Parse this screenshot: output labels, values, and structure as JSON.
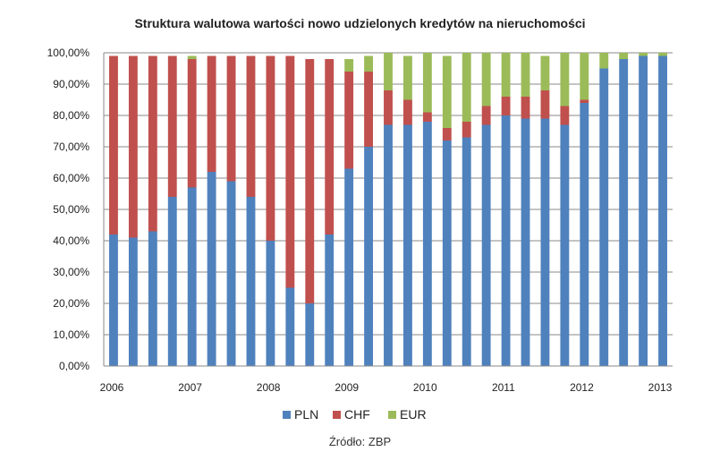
{
  "chart_data": {
    "type": "bar",
    "stacked": true,
    "title": "Struktura walutowa wartości nowo udzielonych kredytów na nieruchomości",
    "source": "Źródło: ZBP",
    "xlabel": "",
    "ylabel": "",
    "ylim": [
      0,
      100
    ],
    "y_ticks": [
      "0,00%",
      "10,00%",
      "20,00%",
      "30,00%",
      "40,00%",
      "50,00%",
      "60,00%",
      "70,00%",
      "80,00%",
      "90,00%",
      "100,00%"
    ],
    "x_tick_labels": [
      "2006",
      "2007",
      "2008",
      "2009",
      "2010",
      "2011",
      "2012",
      "2013"
    ],
    "grid": true,
    "legend_position": "bottom",
    "colors": {
      "PLN": "#4f81bd",
      "CHF": "#c0504d",
      "EUR": "#9bbb59"
    },
    "series": [
      {
        "name": "PLN",
        "values": [
          42,
          41,
          43,
          54,
          57,
          62,
          59,
          54,
          40,
          25,
          20,
          42,
          63,
          70,
          77,
          77,
          78,
          72,
          73,
          77,
          80,
          79,
          79,
          77,
          84,
          95,
          98,
          99,
          99
        ]
      },
      {
        "name": "CHF",
        "values": [
          57,
          58,
          56,
          45,
          41,
          37,
          40,
          45,
          59,
          74,
          78,
          56,
          31,
          24,
          11,
          8,
          3,
          4,
          5,
          6,
          6,
          7,
          9,
          6,
          1,
          0,
          0,
          0,
          0
        ]
      },
      {
        "name": "EUR",
        "values": [
          0,
          0,
          0,
          0,
          1,
          0,
          0,
          0,
          0,
          0,
          0,
          0,
          4,
          5,
          12,
          14,
          19,
          23,
          22,
          17,
          14,
          14,
          11,
          17,
          15,
          5,
          2,
          1,
          1
        ]
      }
    ]
  }
}
